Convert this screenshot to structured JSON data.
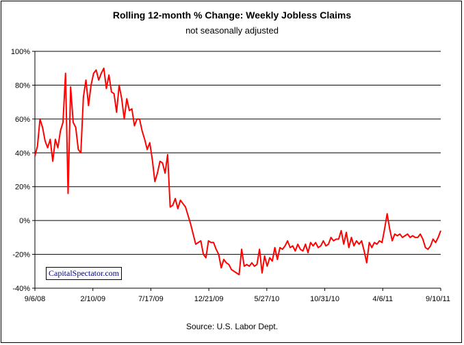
{
  "title": "Rolling 12-month %  Change: Weekly Jobless Claims",
  "subtitle": "not seasonally adjusted",
  "source": "Source: U.S. Labor Dept.",
  "watermark": "CapitalSpectator.com",
  "chart_data": {
    "type": "line",
    "title": "Rolling 12-month %  Change: Weekly Jobless Claims",
    "subtitle": "not seasonally adjusted",
    "xlabel": "",
    "ylabel": "",
    "ylim": [
      -40,
      100
    ],
    "yticks": [
      100,
      80,
      60,
      40,
      20,
      0,
      -20,
      -40
    ],
    "ytick_labels": [
      "100%",
      "80%",
      "60%",
      "40%",
      "20%",
      "0%",
      "-20%",
      "-40%"
    ],
    "xticks": [
      "9/6/08",
      "2/10/09",
      "7/17/09",
      "12/21/09",
      "5/27/10",
      "10/31/10",
      "4/6/11",
      "9/10/11"
    ],
    "grid": "horizontal",
    "legend": "none",
    "color": "#ff0000",
    "series": [
      {
        "values": [
          38,
          44,
          60,
          55,
          47,
          43,
          48,
          35,
          48,
          43,
          53,
          58,
          87,
          16,
          79,
          58,
          55,
          42,
          40,
          73,
          83,
          68,
          80,
          87,
          89,
          83,
          87,
          90,
          78,
          86,
          76,
          75,
          64,
          80,
          72,
          60,
          72,
          65,
          66,
          56,
          60,
          60,
          53,
          48,
          42,
          46,
          36,
          23,
          28,
          35,
          34,
          28,
          39,
          8,
          9,
          13,
          7,
          12,
          10,
          8,
          3,
          -2,
          -8,
          -14,
          -13,
          -12,
          -20,
          -22,
          -12,
          -13,
          -13,
          -17,
          -20,
          -28,
          -23,
          -25,
          -26,
          -29,
          -30,
          -31,
          -32,
          -17,
          -27,
          -26,
          -27,
          -25,
          -27,
          -26,
          -17,
          -31,
          -21,
          -27,
          -22,
          -24,
          -16,
          -23,
          -16,
          -17,
          -15,
          -12,
          -16,
          -15,
          -18,
          -14,
          -17,
          -18,
          -14,
          -19,
          -13,
          -15,
          -13,
          -16,
          -15,
          -12,
          -15,
          -14,
          -10,
          -12,
          -11,
          -11,
          -6,
          -14,
          -7,
          -16,
          -10,
          -15,
          -12,
          -14,
          -12,
          -18,
          -25,
          -13,
          -16,
          -13,
          -14,
          -12,
          -13,
          -5,
          4,
          -5,
          -12,
          -8,
          -9,
          -8,
          -10,
          -9,
          -8,
          -10,
          -9,
          -10,
          -10,
          -8,
          -11,
          -16,
          -17,
          -15,
          -11,
          -13,
          -10,
          -6
        ]
      }
    ]
  }
}
